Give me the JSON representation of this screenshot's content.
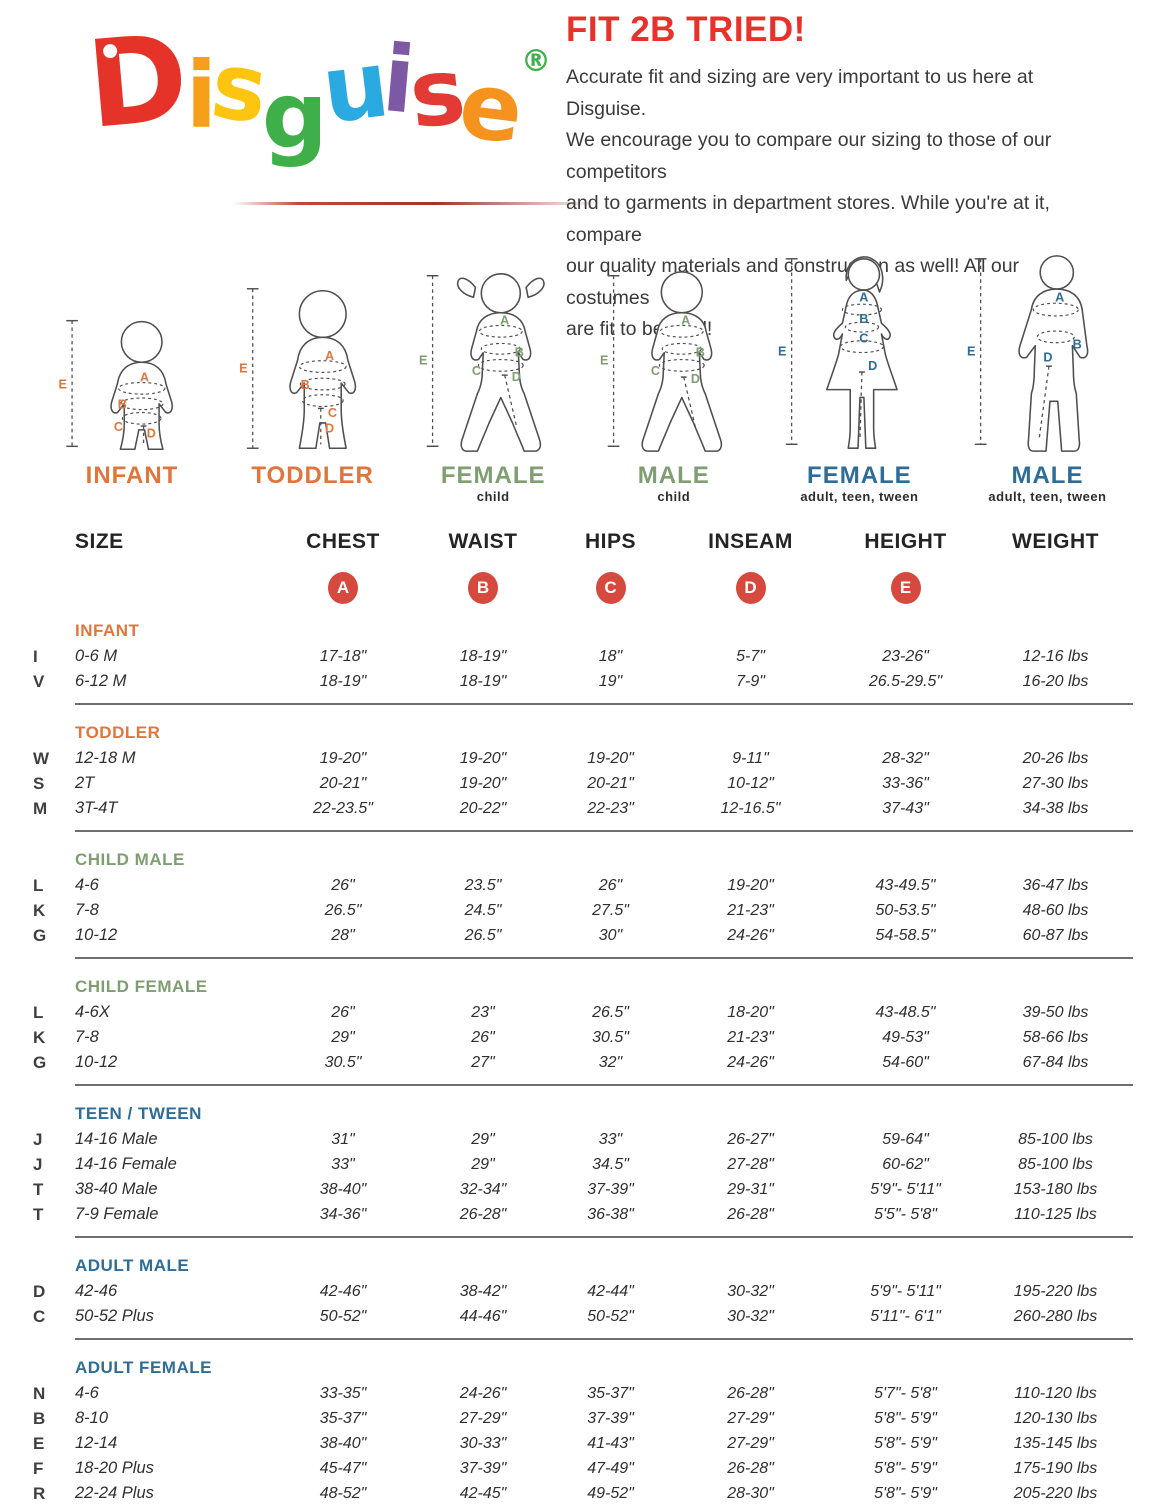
{
  "logo": {
    "brand": "Disguise",
    "registered": "®",
    "registered_color": "#3faf4a",
    "letters": [
      {
        "ch": "D",
        "color": "#e6332a"
      },
      {
        "ch": "i",
        "color": "#f6a01a"
      },
      {
        "ch": "s",
        "color": "#fdc410"
      },
      {
        "ch": "g",
        "color": "#3faf4a"
      },
      {
        "ch": "u",
        "color": "#2baae1"
      },
      {
        "ch": "i",
        "color": "#7d58a5"
      },
      {
        "ch": "s",
        "color": "#e23b36"
      },
      {
        "ch": "e",
        "color": "#f6921e"
      }
    ]
  },
  "intro": {
    "title": "FIT 2B TRIED!",
    "title_color": "#e8312a",
    "lines": [
      "Accurate fit and sizing are very important to us here at Disguise.",
      "We encourage you to compare our sizing to those of our competitors",
      "and to garments in department stores. While you're at it, compare",
      "our quality materials and construction as well! All our costumes",
      "are fit to be tried!"
    ]
  },
  "measures": {
    "letters": [
      "A",
      "B",
      "C",
      "D",
      "E"
    ]
  },
  "figures": [
    {
      "label": "INFANT",
      "sublabel": "",
      "color": "#e0763c"
    },
    {
      "label": "TODDLER",
      "sublabel": "",
      "color": "#e0763c"
    },
    {
      "label": "FEMALE",
      "sublabel": "child",
      "color": "#7f9e71"
    },
    {
      "label": "MALE",
      "sublabel": "child",
      "color": "#7f9e71"
    },
    {
      "label": "FEMALE",
      "sublabel": "adult, teen, tween",
      "color": "#2f6d99"
    },
    {
      "label": "MALE",
      "sublabel": "adult, teen, tween",
      "color": "#2f6d99"
    }
  ],
  "table": {
    "columns": [
      "SIZE",
      "CHEST",
      "WAIST",
      "HIPS",
      "INSEAM",
      "HEIGHT",
      "WEIGHT"
    ],
    "badge_letters": [
      "A",
      "B",
      "C",
      "D",
      "E"
    ],
    "badge_color": "#d6493f",
    "sections": [
      {
        "name": "INFANT",
        "color": "#e0763c",
        "rows": [
          [
            "I",
            "0-6 M",
            "17-18\"",
            "18-19\"",
            "18\"",
            "5-7\"",
            "23-26\"",
            "12-16 lbs"
          ],
          [
            "V",
            "6-12 M",
            "18-19\"",
            "18-19\"",
            "19\"",
            "7-9\"",
            "26.5-29.5\"",
            "16-20 lbs"
          ]
        ]
      },
      {
        "name": "TODDLER",
        "color": "#e0763c",
        "rows": [
          [
            "W",
            "12-18 M",
            "19-20\"",
            "19-20\"",
            "19-20\"",
            "9-11\"",
            "28-32\"",
            "20-26 lbs"
          ],
          [
            "S",
            "2T",
            "20-21\"",
            "19-20\"",
            "20-21\"",
            "10-12\"",
            "33-36\"",
            "27-30 lbs"
          ],
          [
            "M",
            "3T-4T",
            "22-23.5\"",
            "20-22\"",
            "22-23\"",
            "12-16.5\"",
            "37-43\"",
            "34-38 lbs"
          ]
        ]
      },
      {
        "name": "CHILD MALE",
        "color": "#7f9e71",
        "rows": [
          [
            "L",
            "4-6",
            "26\"",
            "23.5\"",
            "26\"",
            "19-20\"",
            "43-49.5\"",
            "36-47 lbs"
          ],
          [
            "K",
            "7-8",
            "26.5\"",
            "24.5\"",
            "27.5\"",
            "21-23\"",
            "50-53.5\"",
            "48-60 lbs"
          ],
          [
            "G",
            "10-12",
            "28\"",
            "26.5\"",
            "30\"",
            "24-26\"",
            "54-58.5\"",
            "60-87 lbs"
          ]
        ]
      },
      {
        "name": "CHILD FEMALE",
        "color": "#7f9e71",
        "rows": [
          [
            "L",
            "4-6X",
            "26\"",
            "23\"",
            "26.5\"",
            "18-20\"",
            "43-48.5\"",
            "39-50 lbs"
          ],
          [
            "K",
            "7-8",
            "29\"",
            "26\"",
            "30.5\"",
            "21-23\"",
            "49-53\"",
            "58-66 lbs"
          ],
          [
            "G",
            "10-12",
            "30.5\"",
            "27\"",
            "32\"",
            "24-26\"",
            "54-60\"",
            "67-84 lbs"
          ]
        ]
      },
      {
        "name": "TEEN / TWEEN",
        "color": "#2f6d99",
        "rows": [
          [
            "J",
            "14-16 Male",
            "31\"",
            "29\"",
            "33\"",
            "26-27\"",
            "59-64\"",
            "85-100 lbs"
          ],
          [
            "J",
            "14-16 Female",
            "33\"",
            "29\"",
            "34.5\"",
            "27-28\"",
            "60-62\"",
            "85-100 lbs"
          ],
          [
            "T",
            "38-40 Male",
            "38-40\"",
            "32-34\"",
            "37-39\"",
            "29-31\"",
            "5'9\"- 5'11\"",
            "153-180 lbs"
          ],
          [
            "T",
            "7-9 Female",
            "34-36\"",
            "26-28\"",
            "36-38\"",
            "26-28\"",
            "5'5\"- 5'8\"",
            "110-125 lbs"
          ]
        ]
      },
      {
        "name": "ADULT MALE",
        "color": "#2f6d99",
        "rows": [
          [
            "D",
            "42-46",
            "42-46\"",
            "38-42\"",
            "42-44\"",
            "30-32\"",
            "5'9\"- 5'11\"",
            "195-220 lbs"
          ],
          [
            "C",
            "50-52 Plus",
            "50-52\"",
            "44-46\"",
            "50-52\"",
            "30-32\"",
            "5'11\"- 6'1\"",
            "260-280 lbs"
          ]
        ]
      },
      {
        "name": "ADULT FEMALE",
        "color": "#2f6d99",
        "rows": [
          [
            "N",
            "4-6",
            "33-35\"",
            "24-26\"",
            "35-37\"",
            "26-28\"",
            "5'7\"- 5'8\"",
            "110-120 lbs"
          ],
          [
            "B",
            "8-10",
            "35-37\"",
            "27-29\"",
            "37-39\"",
            "27-29\"",
            "5'8\"- 5'9\"",
            "120-130 lbs"
          ],
          [
            "E",
            "12-14",
            "38-40\"",
            "30-33\"",
            "41-43\"",
            "27-29\"",
            "5'8\"- 5'9\"",
            "135-145 lbs"
          ],
          [
            "F",
            "18-20 Plus",
            "45-47\"",
            "37-39\"",
            "47-49\"",
            "26-28\"",
            "5'8\"- 5'9\"",
            "175-190 lbs"
          ],
          [
            "R",
            "22-24 Plus",
            "48-52\"",
            "42-45\"",
            "49-52\"",
            "28-30\"",
            "5'8\"- 5'9\"",
            "205-220 lbs"
          ]
        ]
      }
    ]
  }
}
